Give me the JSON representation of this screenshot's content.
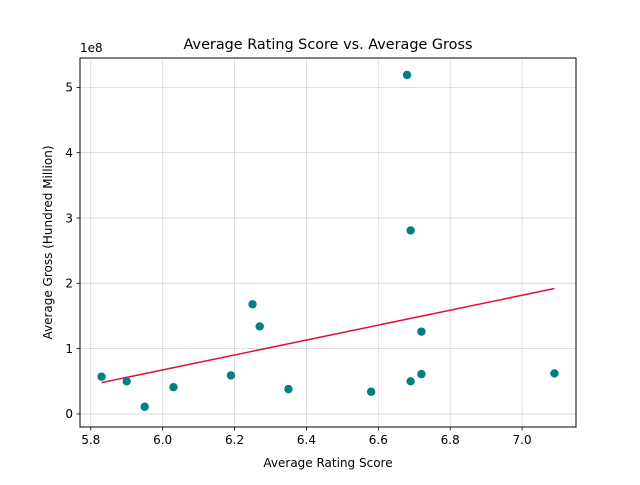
{
  "chart_data": {
    "type": "scatter",
    "title": "Average Rating Score vs. Average Gross",
    "xlabel": "Average Rating Score",
    "ylabel": "Average Gross (Hundred Million)",
    "y_offset_label": "1e8",
    "xlim": [
      5.77,
      7.15
    ],
    "ylim": [
      -0.2,
      5.45
    ],
    "y_scale_factor": 100000000,
    "x_ticks": [
      5.8,
      6.0,
      6.2,
      6.4,
      6.6,
      6.8,
      7.0
    ],
    "x_tick_labels": [
      "5.8",
      "6.0",
      "6.2",
      "6.4",
      "6.6",
      "6.8",
      "7.0"
    ],
    "y_ticks": [
      0,
      1,
      2,
      3,
      4,
      5
    ],
    "y_tick_labels": [
      "0",
      "1",
      "2",
      "3",
      "4",
      "5"
    ],
    "grid": true,
    "legend": "none",
    "point_color": "#008080",
    "trend_color": "#dc143c",
    "series": [
      {
        "x": [
          5.83,
          5.9,
          5.95,
          6.03,
          6.19,
          6.25,
          6.27,
          6.35,
          6.58,
          6.68,
          6.69,
          6.69,
          6.72,
          6.72,
          7.09
        ],
        "y": [
          0.57,
          0.5,
          0.11,
          0.41,
          0.59,
          1.68,
          1.34,
          0.38,
          0.34,
          5.19,
          2.81,
          0.5,
          1.26,
          0.61,
          0.62
        ]
      }
    ],
    "trendline": {
      "x": [
        5.83,
        7.09
      ],
      "y": [
        0.48,
        1.92
      ]
    }
  }
}
